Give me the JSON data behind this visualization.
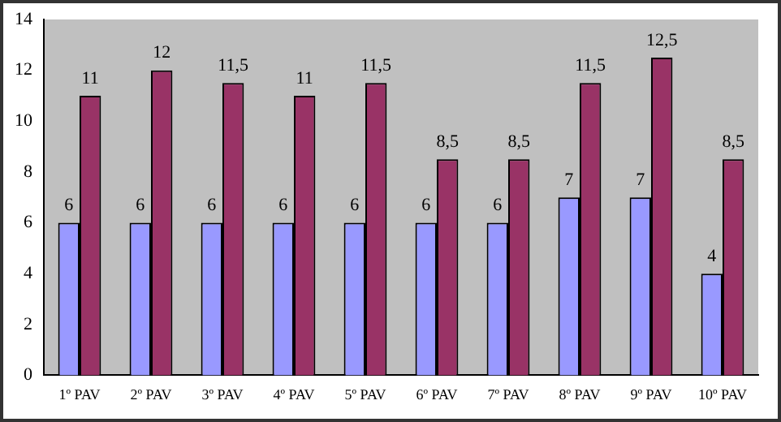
{
  "chart_data": {
    "type": "bar",
    "categories": [
      "1º PAV",
      "2º PAV",
      "3º PAV",
      "4º PAV",
      "5º PAV",
      "6º PAV",
      "7º PAV",
      "8º PAV",
      "9º PAV",
      "10º PAV"
    ],
    "series": [
      {
        "color": "#9999ff",
        "values": [
          6,
          6,
          6,
          6,
          6,
          6,
          6,
          7,
          7,
          4
        ],
        "value_labels": [
          "6",
          "6",
          "6",
          "6",
          "6",
          "6",
          "6",
          "7",
          "7",
          "4"
        ]
      },
      {
        "color": "#993366",
        "values": [
          11,
          12,
          11.5,
          11,
          11.5,
          8.5,
          8.5,
          11.5,
          12.5,
          8.5
        ],
        "value_labels": [
          "11",
          "12",
          "11,5",
          "11",
          "11,5",
          "8,5",
          "8,5",
          "11,5",
          "12,5",
          "8,5"
        ]
      }
    ],
    "ylim": [
      0,
      14
    ],
    "yticks": [
      0,
      2,
      4,
      6,
      8,
      10,
      12,
      14
    ],
    "grid": false,
    "legend": false
  }
}
